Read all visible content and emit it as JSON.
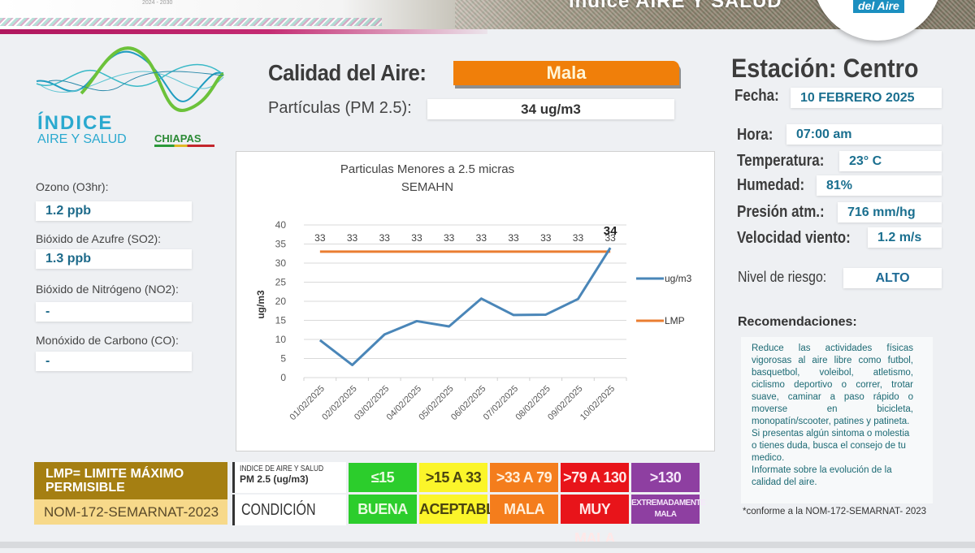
{
  "header": {
    "banner_title": "Índice AIRE Y SALUD",
    "badge_text": "del Aire",
    "year_range": "2024 - 2030"
  },
  "logo": {
    "line1": "ÍNDICE",
    "line2": "AIRE Y SALUD",
    "region": "CHIAPAS"
  },
  "pollutants": [
    {
      "label": "Ozono (O3hr):",
      "value": "1.2  ppb"
    },
    {
      "label": "Bióxido de Azufre (SO2):",
      "value": "1.3 ppb"
    },
    {
      "label": "Bióxido de Nitrógeno (NO2):",
      "value": "-"
    },
    {
      "label": "Monóxido de Carbono (CO):",
      "value": "-"
    }
  ],
  "air_quality": {
    "label": "Calidad del Aire:",
    "value": "Mala",
    "pm_label": "Partículas (PM 2.5):",
    "pm_value": "34 ug/m3"
  },
  "station": {
    "title": "Estación: Centro",
    "fields": [
      {
        "label": "Fecha:",
        "value": "10 FEBRERO 2025"
      },
      {
        "label": "Hora:",
        "value": "07:00 am"
      },
      {
        "label": "Temperatura:",
        "value": "23° C"
      },
      {
        "label": "Humedad:",
        "value": "81%"
      },
      {
        "label": "Presión atm.:",
        "value": "716 mm/hg"
      },
      {
        "label": "Velocidad viento:",
        "value": "1.2 m/s"
      }
    ],
    "risk_label": "Nivel de riesgo:",
    "risk_value": "ALTO"
  },
  "recommendations": {
    "title": "Recomendaciones:",
    "paragraphs": [
      "Reduce las actividades físicas vigorosas al aire libre como futbol, basquetbol, voleibol, atletismo, ciclismo deportivo o correr, trotar suave, caminar a paso rápido o moverse en bicicleta, monopatín/scooter, patines y patineta.",
      "Si presentas algún sintoma o molestia o tienes duda, busca el consejo de tu medico.",
      "Informate sobre la evolución de la calidad del aire."
    ],
    "footnote": "*conforme a la NOM-172-SEMARNAT- 2023"
  },
  "lmp_legend": {
    "title": "LMP= LIMITE MÁXIMO PERMISIBLE",
    "norm": "NOM-172-SEMARNAT-2023"
  },
  "scale": {
    "head_line1": "INDICE DE AIRE Y SALUD",
    "head_line2": "PM 2.5 (ug/m3)",
    "condition_label": "CONDICIÓN",
    "levels": [
      {
        "range": "≤15",
        "condition": "BUENA",
        "bg": "#2ccd2c",
        "fg": "#e9fbe0"
      },
      {
        "range": ">15 A 33",
        "condition": "ACEPTABLE",
        "bg": "#fbf52a",
        "fg": "#4a4410"
      },
      {
        "range": ">33 A 79",
        "condition": "MALA",
        "bg": "#f47d1c",
        "fg": "#fff0dc"
      },
      {
        "range": ">79 A 130",
        "condition": "MUY MALA",
        "bg": "#e8141a",
        "fg": "#ffe8e8"
      },
      {
        "range": ">130",
        "condition": "EXTREMADAMENTE MALA",
        "bg": "#8e3fa1",
        "fg": "#f5e6fa"
      }
    ]
  },
  "chart_data": {
    "type": "line",
    "title": "Particulas Menores a 2.5 micras",
    "subtitle": "SEMAHN",
    "xlabel": "",
    "ylabel": "ug/m3",
    "ylim": [
      0,
      40
    ],
    "yticks": [
      0,
      5,
      10,
      15,
      20,
      25,
      30,
      35,
      40
    ],
    "grid": true,
    "legend_position": "right",
    "categories": [
      "01/02/2025",
      "02/02/2025",
      "03/02/2025",
      "04/02/2025",
      "05/02/2025",
      "06/02/2025",
      "07/02/2025",
      "08/02/2025",
      "09/02/2025",
      "10/02/2025"
    ],
    "series": [
      {
        "name": "ug/m3",
        "color": "#4a86b8",
        "values": [
          9.8,
          3.3,
          11.3,
          14.8,
          13.4,
          20.7,
          16.4,
          16.5,
          20.6,
          34
        ],
        "data_labels": [
          "",
          "",
          "",
          "",
          "",
          "",
          "",
          "",
          "",
          "34"
        ]
      },
      {
        "name": "LMP",
        "color": "#ea7d31",
        "values": [
          33,
          33,
          33,
          33,
          33,
          33,
          33,
          33,
          33,
          33
        ],
        "data_labels": [
          "33",
          "33",
          "33",
          "33",
          "33",
          "33",
          "33",
          "33",
          "33",
          "33"
        ]
      }
    ]
  }
}
